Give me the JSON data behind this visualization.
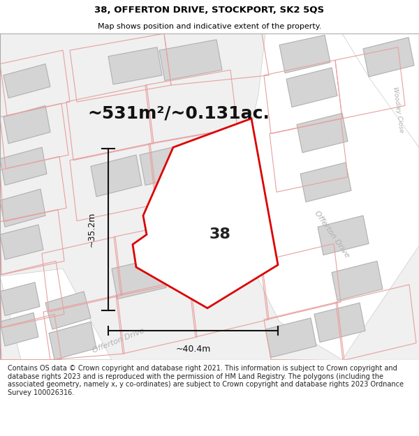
{
  "title_line1": "38, OFFERTON DRIVE, STOCKPORT, SK2 5QS",
  "title_line2": "Map shows position and indicative extent of the property.",
  "area_text": "~531m²/~0.131ac.",
  "label_number": "38",
  "dim_width": "~40.4m",
  "dim_height": "~35.2m",
  "footer_text": "Contains OS data © Crown copyright and database right 2021. This information is subject to Crown copyright and database rights 2023 and is reproduced with the permission of HM Land Registry. The polygons (including the associated geometry, namely x, y co-ordinates) are subject to Crown copyright and database rights 2023 Ordnance Survey 100026316.",
  "map_bg": "#f5f5f5",
  "plot_color": "#dd0000",
  "plot_fill": "#ffffff",
  "building_fill": "#d4d4d4",
  "building_stroke": "#b0b0b0",
  "light_plot_color": "#e8a0a0",
  "street_label_color": "#b0b0b0",
  "dim_line_color": "#111111",
  "title_fontsize": 9.5,
  "subtitle_fontsize": 8,
  "area_fontsize": 18,
  "number_fontsize": 16,
  "dim_fontsize": 9,
  "street_fontsize": 8,
  "footer_fontsize": 7,
  "title_bg": "#ebebeb",
  "footer_bg": "#ffffff",
  "map_border": "#aaaaaa"
}
